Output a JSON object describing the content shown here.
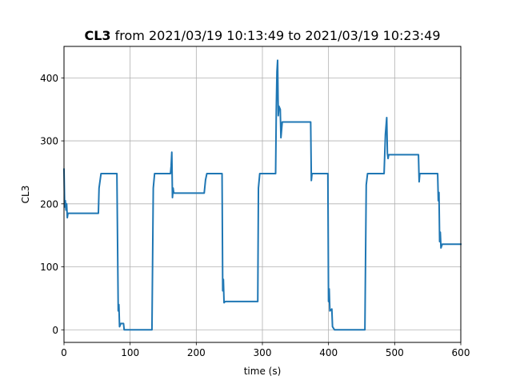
{
  "chart_data": {
    "type": "line",
    "title_bold": "CL3",
    "title_rest": " from 2021/03/19 10:13:49 to 2021/03/19 10:23:49",
    "xlabel": "time (s)",
    "ylabel": "CL3",
    "xlim": [
      0,
      600
    ],
    "ylim": [
      -20,
      450
    ],
    "xticks": [
      0,
      100,
      200,
      300,
      400,
      500,
      600
    ],
    "yticks": [
      0,
      100,
      200,
      300,
      400
    ],
    "grid": true,
    "series": [
      {
        "color": "#1f77b4",
        "points": [
          [
            0,
            255
          ],
          [
            1,
            195
          ],
          [
            2,
            205
          ],
          [
            3,
            190
          ],
          [
            4,
            200
          ],
          [
            5,
            178
          ],
          [
            6,
            185
          ],
          [
            52,
            185
          ],
          [
            53,
            225
          ],
          [
            56,
            248
          ],
          [
            80,
            248
          ],
          [
            82,
            30
          ],
          [
            83,
            40
          ],
          [
            84,
            5
          ],
          [
            86,
            10
          ],
          [
            90,
            10
          ],
          [
            91,
            0
          ],
          [
            133,
            0
          ],
          [
            135,
            225
          ],
          [
            137,
            248
          ],
          [
            161,
            248
          ],
          [
            162,
            260
          ],
          [
            163,
            282
          ],
          [
            164,
            210
          ],
          [
            165,
            225
          ],
          [
            166,
            217
          ],
          [
            212,
            217
          ],
          [
            214,
            238
          ],
          [
            216,
            248
          ],
          [
            239,
            248
          ],
          [
            240,
            62
          ],
          [
            241,
            80
          ],
          [
            242,
            43
          ],
          [
            244,
            45
          ],
          [
            293,
            45
          ],
          [
            294,
            225
          ],
          [
            296,
            248
          ],
          [
            320,
            248
          ],
          [
            321,
            350
          ],
          [
            322,
            410
          ],
          [
            323,
            428
          ],
          [
            324,
            340
          ],
          [
            325,
            355
          ],
          [
            327,
            350
          ],
          [
            328,
            305
          ],
          [
            330,
            330
          ],
          [
            373,
            330
          ],
          [
            374,
            237
          ],
          [
            375,
            248
          ],
          [
            399,
            248
          ],
          [
            400,
            45
          ],
          [
            401,
            65
          ],
          [
            402,
            30
          ],
          [
            405,
            33
          ],
          [
            406,
            5
          ],
          [
            409,
            0
          ],
          [
            455,
            0
          ],
          [
            457,
            230
          ],
          [
            459,
            248
          ],
          [
            484,
            248
          ],
          [
            486,
            310
          ],
          [
            488,
            337
          ],
          [
            489,
            280
          ],
          [
            490,
            272
          ],
          [
            491,
            278
          ],
          [
            536,
            278
          ],
          [
            537,
            235
          ],
          [
            538,
            248
          ],
          [
            565,
            248
          ],
          [
            566,
            205
          ],
          [
            567,
            218
          ],
          [
            568,
            140
          ],
          [
            569,
            155
          ],
          [
            570,
            130
          ],
          [
            572,
            136
          ],
          [
            600,
            136
          ]
        ]
      }
    ]
  }
}
